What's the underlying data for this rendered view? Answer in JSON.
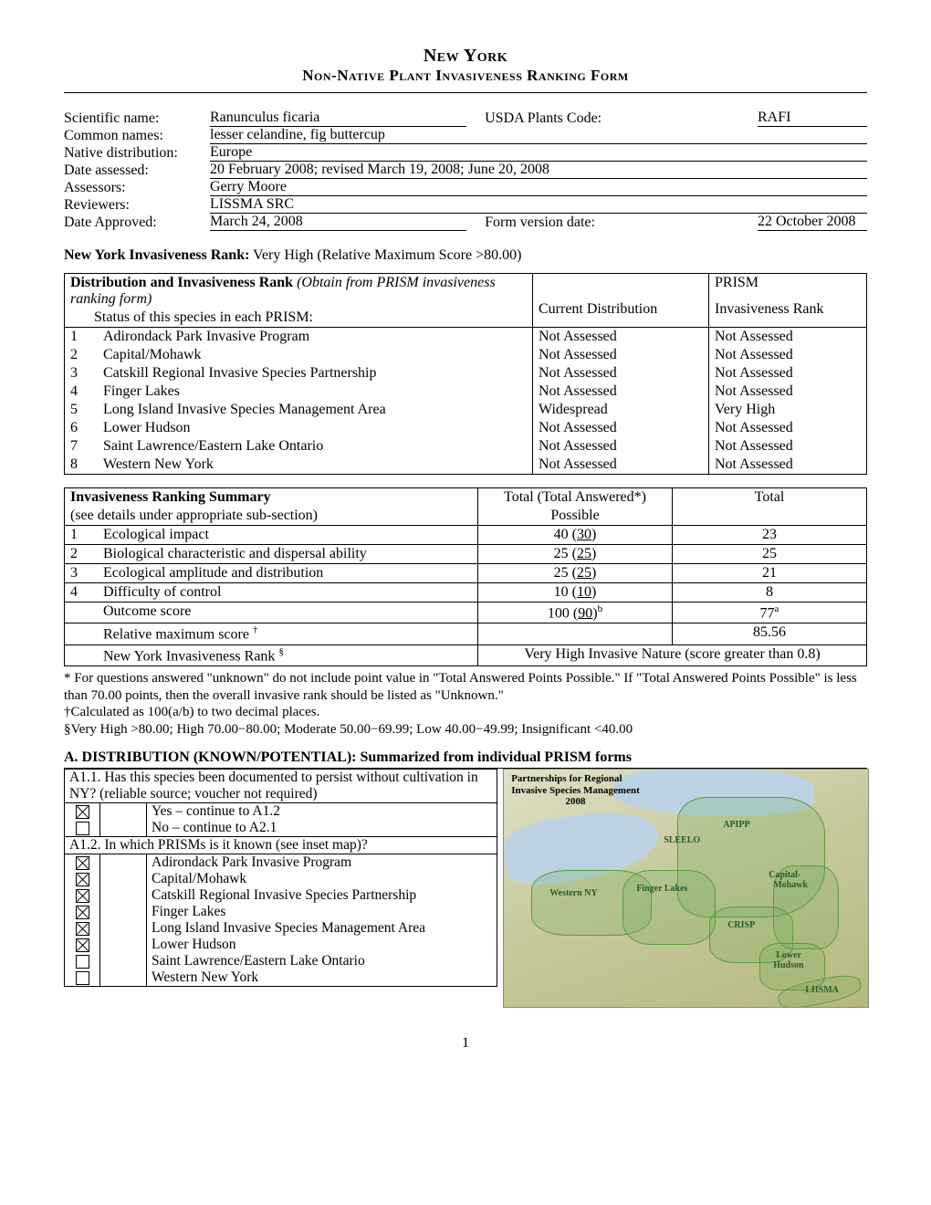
{
  "title": {
    "line1": "New York",
    "line2": "Non-Native Plant Invasiveness Ranking Form"
  },
  "info": {
    "scientific_label": "Scientific name:",
    "scientific_value": "Ranunculus ficaria",
    "usda_label": "USDA Plants Code:",
    "usda_value": "RAFI",
    "common_label": "Common names:",
    "common_value": "lesser celandine, fig buttercup",
    "native_label": "Native distribution:",
    "native_value": "Europe",
    "date_assessed_label": "Date assessed:",
    "date_assessed_value": "20 February 2008; revised March 19, 2008; June 20, 2008",
    "assessors_label": "Assessors:",
    "assessors_value": "Gerry Moore",
    "reviewers_label": "Reviewers:",
    "reviewers_value": "LISSMA SRC",
    "date_approved_label": "Date Approved:",
    "date_approved_value": "March 24, 2008",
    "form_version_label": "Form version date:",
    "form_version_value": "22 October 2008"
  },
  "ny_rank": {
    "label": "New York Invasiveness Rank:",
    "value": "Very High (Relative Maximum Score >80.00)"
  },
  "dist_table": {
    "title_bold": "Distribution and Invasiveness Rank",
    "title_italic": " (Obtain from PRISM invasiveness ranking form)",
    "status_header": "Status of this species in each PRISM:",
    "col_current": "Current Distribution",
    "col_rank_l1": "PRISM",
    "col_rank_l2": "Invasiveness Rank",
    "rows": [
      {
        "n": "1",
        "name": "Adirondack Park Invasive Program",
        "cur": "Not Assessed",
        "rank": "Not Assessed"
      },
      {
        "n": "2",
        "name": "Capital/Mohawk",
        "cur": "Not Assessed",
        "rank": "Not Assessed"
      },
      {
        "n": "3",
        "name": "Catskill Regional Invasive Species Partnership",
        "cur": "Not Assessed",
        "rank": "Not Assessed"
      },
      {
        "n": "4",
        "name": "Finger Lakes",
        "cur": "Not Assessed",
        "rank": "Not Assessed"
      },
      {
        "n": "5",
        "name": "Long Island Invasive Species Management Area",
        "cur": "Widespread",
        "rank": "Very High"
      },
      {
        "n": "6",
        "name": "Lower Hudson",
        "cur": "Not Assessed",
        "rank": "Not Assessed"
      },
      {
        "n": "7",
        "name": "Saint Lawrence/Eastern Lake Ontario",
        "cur": "Not Assessed",
        "rank": "Not Assessed"
      },
      {
        "n": "8",
        "name": "Western New York",
        "cur": "Not Assessed",
        "rank": "Not Assessed"
      }
    ]
  },
  "summary": {
    "header_left": "Invasiveness Ranking Summary",
    "header_sub": "(see details under appropriate sub-section)",
    "col_possible_l1": "Total (Total Answered*)",
    "col_possible_l2": "Possible",
    "col_total": "Total",
    "rows": [
      {
        "n": "1",
        "name": "Ecological impact",
        "poss_a": "40 (",
        "poss_u": "30",
        "poss_b": ")",
        "total": "23"
      },
      {
        "n": "2",
        "name": "Biological characteristic and dispersal ability",
        "poss_a": "25 (",
        "poss_u": "25",
        "poss_b": ")",
        "total": "25"
      },
      {
        "n": "3",
        "name": "Ecological amplitude and distribution",
        "poss_a": "25 (",
        "poss_u": "25",
        "poss_b": ")",
        "total": "21"
      },
      {
        "n": "4",
        "name": "Difficulty of control",
        "poss_a": "10 (",
        "poss_u": "10",
        "poss_b": ")",
        "total": "8"
      }
    ],
    "outcome_label": "Outcome score",
    "outcome_poss_a": "100 (",
    "outcome_poss_u": "90",
    "outcome_poss_b": ")",
    "outcome_sup_b": "b",
    "outcome_total": "77",
    "outcome_sup_a": "a",
    "relmax_label": "Relative maximum score ",
    "relmax_sup": "†",
    "relmax_value": "85.56",
    "nyrank_label": "New York Invasiveness Rank ",
    "nyrank_sup": "§",
    "nyrank_value": "Very High Invasive Nature (score greater than 0.8)"
  },
  "footnotes": {
    "star": "* For questions answered \"unknown\" do not include point value in \"Total Answered Points Possible.\"  If \"Total Answered Points Possible\" is less than 70.00 points, then the overall invasive rank should be listed as \"Unknown.\"",
    "dagger": "†Calculated as 100(a/b) to two decimal places.",
    "section": "§Very High >80.00; High 70.00−80.00; Moderate 50.00−69.99; Low 40.00−49.99; Insignificant <40.00"
  },
  "sectionA": {
    "heading": "A. DISTRIBUTION (KNOWN/POTENTIAL): Summarized from individual PRISM forms",
    "a11_q": "A1.1. Has this species been documented to persist without cultivation in NY? (reliable source; voucher not required)",
    "a11_yes": "Yes – continue to A1.2",
    "a11_no": "No – continue to A2.1",
    "a12_q": "A1.2. In which PRISMs is it known (see inset map)?",
    "prisms": [
      {
        "checked": true,
        "name": "Adirondack Park Invasive Program"
      },
      {
        "checked": true,
        "name": "Capital/Mohawk"
      },
      {
        "checked": true,
        "name": "Catskill Regional Invasive Species Partnership"
      },
      {
        "checked": true,
        "name": "Finger Lakes"
      },
      {
        "checked": true,
        "name": "Long Island Invasive Species Management Area"
      },
      {
        "checked": true,
        "name": "Lower Hudson"
      },
      {
        "checked": false,
        "name": "Saint Lawrence/Eastern Lake Ontario"
      },
      {
        "checked": false,
        "name": "Western New York"
      }
    ]
  },
  "map": {
    "title_l1": "Partnerships for Regional",
    "title_l2": "Invasive Species Management",
    "title_l3": "2008",
    "labels": {
      "apipp": "APIPP",
      "sleelo": "SLEELO",
      "capital": "Capital-",
      "mohawk": "Mohawk",
      "finger": "Finger Lakes",
      "western": "Western NY",
      "crisp": "CRISP",
      "lower": "Lower",
      "hudson": "Hudson",
      "liisma": "LIISMA"
    }
  },
  "page_number": "1"
}
